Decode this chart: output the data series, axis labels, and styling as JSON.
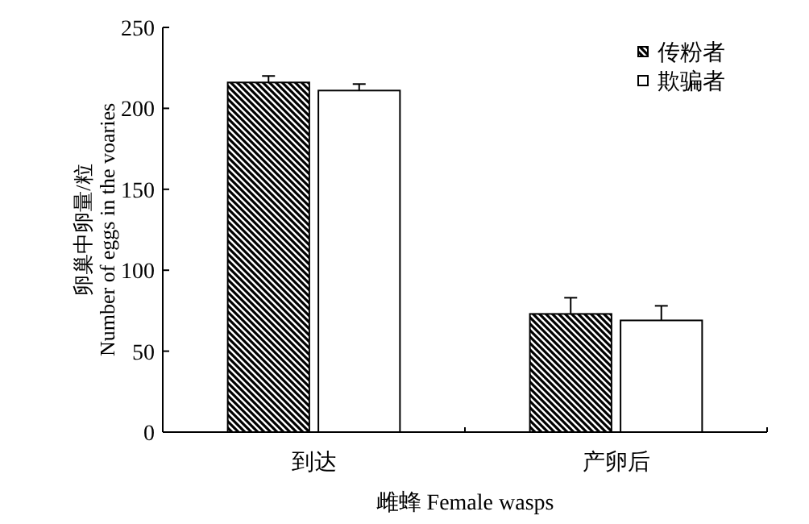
{
  "chart_data": {
    "type": "bar",
    "xlabel": "雌蜂 Female wasps",
    "ylabel": "卵巢中卵量/粒 Number of eggs in the voaries",
    "categories": [
      "到达",
      "产卵后"
    ],
    "series": [
      {
        "name": "传粉者",
        "color": "#000000",
        "values": [
          216,
          73
        ],
        "errors": [
          [
            216,
            220
          ],
          [
            73,
            83
          ]
        ]
      },
      {
        "name": "欺骗者",
        "color": "#ffffff",
        "values": [
          211,
          69
        ],
        "errors": [
          [
            211,
            215
          ],
          [
            69,
            78
          ]
        ]
      }
    ],
    "ylim": [
      0,
      250
    ],
    "yticks": [
      0,
      50,
      100,
      150,
      200,
      250
    ],
    "legend": "top right",
    "grid": false
  }
}
